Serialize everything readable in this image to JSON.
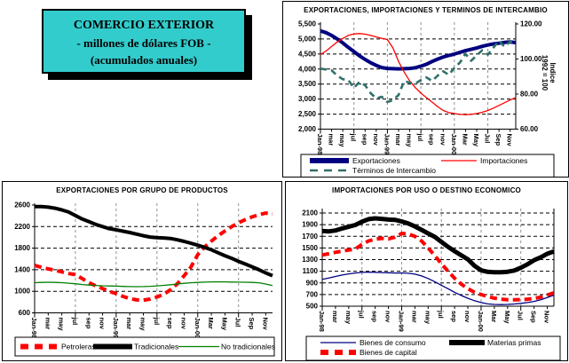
{
  "header_box": {
    "line1": "COMERCIO EXTERIOR",
    "line2": "-  millones de dólares FOB  -",
    "line3": "(acumulados anuales)",
    "fill_color": "#33CCCC"
  },
  "x_tick_labels": [
    "Jan-98",
    "mar",
    "may",
    "jul",
    "sep",
    "nov",
    "Jan-99",
    "mar",
    "may",
    "jul",
    "sep",
    "nov",
    "Jan-00",
    "Mar",
    "May",
    "Jul",
    "Sep",
    "Nov"
  ],
  "chart_data": [
    {
      "type": "line",
      "title": "EXPORTACIONES, IMPORTACIONES Y TERMINOS DE INTERCAMBIO",
      "x_labels": [
        "Jan-98",
        "mar",
        "may",
        "jul",
        "sep",
        "nov",
        "Jan-99",
        "mar",
        "may",
        "jul",
        "sep",
        "nov",
        "Jan-00",
        "Mar",
        "May",
        "Jul",
        "Sep",
        "Nov"
      ],
      "left_axis": {
        "min": 2000,
        "max": 5500,
        "tick_step": 500,
        "tick_labels": [
          "5,500",
          "5,000",
          "4,500",
          "4,000",
          "3,500",
          "3,000",
          "2,500",
          "2,000"
        ],
        "grid_values": [
          5000,
          4500,
          4000,
          3500,
          3000,
          2500
        ]
      },
      "right_axis": {
        "min": 60,
        "max": 120,
        "tick_labels": [
          "120.00",
          "100.00",
          "80.00",
          "60.00"
        ],
        "tick_values": [
          120,
          100,
          80,
          60
        ],
        "title_lines": [
          "Indice",
          "1992 = 100"
        ]
      },
      "series": [
        {
          "name": "Exportaciones",
          "axis": "left",
          "color": "#000080",
          "width": 4,
          "dash": "",
          "values": [
            5270,
            5210,
            5120,
            5000,
            4870,
            4720,
            4580,
            4440,
            4320,
            4210,
            4120,
            4050,
            4020,
            4010,
            4005,
            4010,
            4020,
            4045,
            4095,
            4160,
            4250,
            4330,
            4400,
            4450,
            4500,
            4555,
            4610,
            4655,
            4700,
            4755,
            4800,
            4835,
            4860,
            4885,
            4900,
            4880
          ]
        },
        {
          "name": "Importaciones",
          "axis": "left",
          "color": "#FF0000",
          "width": 1.3,
          "dash": "",
          "values": [
            4480,
            4600,
            4750,
            4900,
            5020,
            5120,
            5170,
            5180,
            5160,
            5120,
            5070,
            5020,
            4980,
            4700,
            4250,
            3900,
            3600,
            3380,
            3200,
            3050,
            2900,
            2750,
            2620,
            2550,
            2520,
            2490,
            2480,
            2490,
            2520,
            2560,
            2620,
            2700,
            2790,
            2880,
            2970,
            3050
          ]
        },
        {
          "name": "Términos de Intercambio",
          "axis": "right",
          "color": "#30706A",
          "width": 2.6,
          "dash": "7,5",
          "values": [
            94.5,
            94,
            93.5,
            90.5,
            88.5,
            88,
            83.5,
            87,
            85,
            80.5,
            77.5,
            78.5,
            75.5,
            76.5,
            79.5,
            87.5,
            86.5,
            86,
            88,
            89.5,
            87.5,
            90.5,
            93,
            91,
            95,
            98,
            103,
            99,
            102,
            105,
            102.5,
            106.5,
            110.5,
            107,
            110,
            108.5
          ]
        }
      ]
    },
    {
      "type": "line",
      "title": "EXPORTACIONES POR GRUPO DE PRODUCTOS",
      "x_labels": [
        "Jan-98",
        "mar",
        "may",
        "jul",
        "sep",
        "nov",
        "Jan-99",
        "mar",
        "may",
        "jul",
        "sep",
        "nov",
        "Jan-00",
        "Mar",
        "May",
        "Jul",
        "Sep",
        "Nov"
      ],
      "left_axis": {
        "min": 600,
        "max": 2600,
        "tick_step": 400,
        "tick_labels": [
          "2600",
          "2200",
          "1800",
          "1400",
          "1000",
          "600"
        ],
        "grid_values": [
          2200,
          1800,
          1400,
          1000
        ]
      },
      "series": [
        {
          "name": "Petroleras",
          "axis": "left",
          "color": "#FF0000",
          "width": 4,
          "dash": "8,5",
          "values": [
            1480,
            1445,
            1415,
            1390,
            1360,
            1330,
            1310,
            1235,
            1160,
            1100,
            1050,
            1000,
            955,
            905,
            865,
            840,
            835,
            855,
            895,
            945,
            1030,
            1140,
            1290,
            1450,
            1680,
            1820,
            1930,
            2030,
            2120,
            2200,
            2270,
            2330,
            2380,
            2420,
            2450,
            2435
          ]
        },
        {
          "name": "Tradicionales",
          "axis": "left",
          "color": "#000000",
          "width": 4,
          "dash": "",
          "values": [
            2570,
            2570,
            2560,
            2540,
            2510,
            2470,
            2405,
            2340,
            2290,
            2240,
            2200,
            2160,
            2140,
            2115,
            2090,
            2060,
            2030,
            2005,
            1995,
            1990,
            1980,
            1955,
            1925,
            1890,
            1855,
            1815,
            1770,
            1715,
            1660,
            1610,
            1555,
            1505,
            1455,
            1400,
            1340,
            1290
          ]
        },
        {
          "name": "No tradicionales",
          "axis": "left",
          "color": "#008000",
          "width": 1.3,
          "dash": "",
          "values": [
            1160,
            1165,
            1168,
            1165,
            1160,
            1150,
            1140,
            1125,
            1115,
            1108,
            1102,
            1098,
            1095,
            1090,
            1088,
            1086,
            1088,
            1092,
            1100,
            1110,
            1122,
            1135,
            1148,
            1158,
            1165,
            1170,
            1174,
            1176,
            1175,
            1172,
            1170,
            1168,
            1165,
            1158,
            1135,
            1105
          ]
        }
      ]
    },
    {
      "type": "line",
      "title": "IMPORTACIONES POR USO O DESTINO ECONOMICO",
      "x_labels": [
        "Jan-98",
        "mar",
        "may",
        "jul",
        "sep",
        "nov",
        "Jan-99",
        "mar",
        "may",
        "jul",
        "sep",
        "nov",
        "Jan-00",
        "Mar",
        "May",
        "Jul",
        "Sep",
        "Nov"
      ],
      "left_axis": {
        "min": 500,
        "max": 2100,
        "tick_step": 200,
        "tick_labels": [
          "2100",
          "1900",
          "1700",
          "1500",
          "1300",
          "1100",
          "900",
          "700",
          "500"
        ],
        "grid_values": [
          2100,
          1900,
          1700,
          1500,
          1300,
          1100,
          900,
          700
        ]
      },
      "series": [
        {
          "name": "Bienes de consumo",
          "axis": "left",
          "color": "#000080",
          "width": 1.3,
          "dash": "",
          "values": [
            960,
            985,
            1010,
            1035,
            1055,
            1070,
            1080,
            1085,
            1082,
            1078,
            1074,
            1070,
            1072,
            1065,
            1050,
            1020,
            975,
            920,
            860,
            800,
            740,
            685,
            635,
            595,
            562,
            540,
            530,
            528,
            530,
            538,
            548,
            562,
            582,
            612,
            650,
            690
          ]
        },
        {
          "name": "Bienes de capital",
          "axis": "left",
          "color": "#FF0000",
          "width": 4,
          "dash": "8,5",
          "values": [
            1380,
            1400,
            1425,
            1445,
            1465,
            1480,
            1560,
            1620,
            1650,
            1665,
            1655,
            1685,
            1750,
            1740,
            1700,
            1620,
            1500,
            1370,
            1230,
            1100,
            980,
            880,
            800,
            740,
            700,
            665,
            638,
            620,
            612,
            610,
            613,
            620,
            632,
            655,
            692,
            730
          ]
        },
        {
          "name": "Materias primas",
          "axis": "left",
          "color": "#000000",
          "width": 5,
          "dash": "",
          "values": [
            1790,
            1785,
            1800,
            1835,
            1865,
            1895,
            1950,
            1995,
            2008,
            2000,
            1988,
            1982,
            1955,
            1920,
            1870,
            1810,
            1750,
            1690,
            1605,
            1520,
            1445,
            1375,
            1305,
            1195,
            1115,
            1090,
            1082,
            1082,
            1092,
            1112,
            1160,
            1220,
            1290,
            1340,
            1400,
            1440
          ]
        }
      ]
    }
  ]
}
